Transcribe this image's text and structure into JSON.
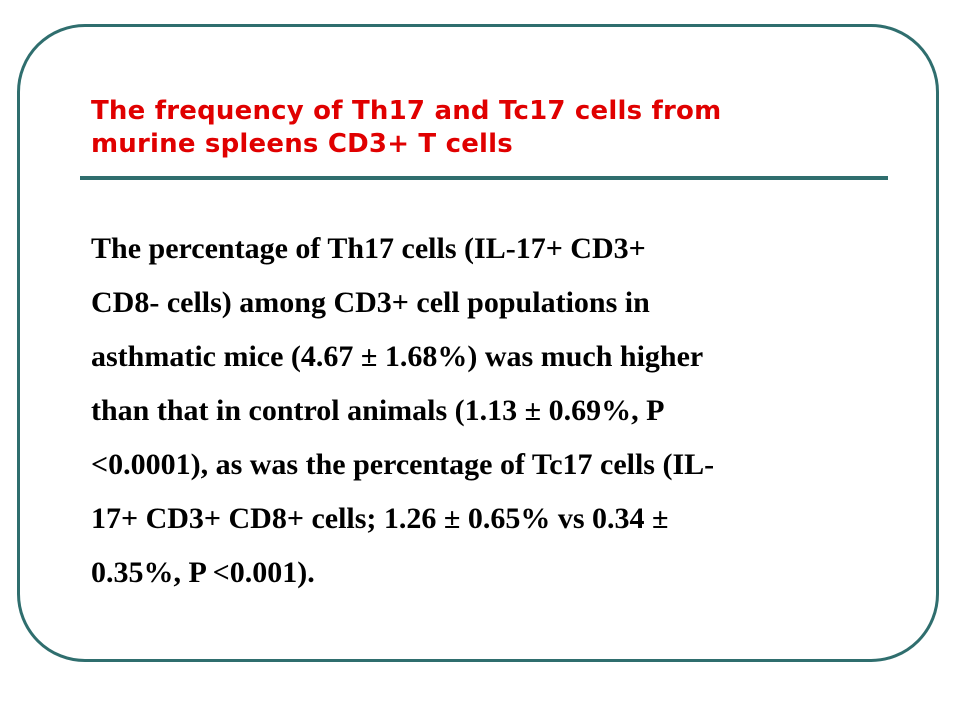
{
  "slide": {
    "title_lines": [
      "The frequency of Th17 and Tc17 cells from",
      "murine spleens CD3+ T cells"
    ],
    "body_lines": [
      "The percentage of Th17 cells (IL-17+ CD3+",
      "CD8- cells) among CD3+ cell populations in",
      "asthmatic mice (4.67 ± 1.68%) was much higher",
      "than that in control animals (1.13 ± 0.69%, P",
      "<0.0001), as was the percentage of Tc17 cells (IL-",
      "17+ CD3+ CD8+ cells; 1.26 ± 0.65% vs 0.34 ±",
      "0.35%, P <0.001)."
    ]
  },
  "colors": {
    "title": "#e00000",
    "body": "#000000",
    "frame": "#2f6e6e",
    "rule": "#2f6e6e",
    "background": "#ffffff"
  }
}
